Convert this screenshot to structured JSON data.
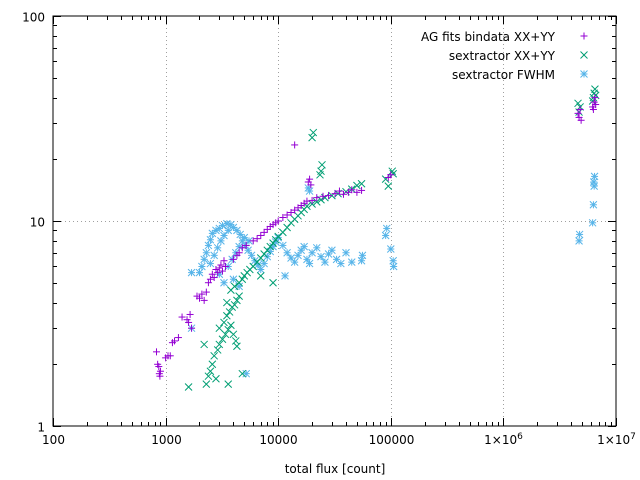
{
  "chart_data": {
    "type": "scatter",
    "title": "",
    "xlabel": "total flux [count]",
    "ylabel": "",
    "xscale": "log",
    "yscale": "log",
    "xlim": [
      100,
      10000000
    ],
    "ylim": [
      1,
      100
    ],
    "grid": true,
    "legend_position": "top-right",
    "x_ticks": [
      {
        "value": 100,
        "label": "100"
      },
      {
        "value": 1000,
        "label": "1000"
      },
      {
        "value": 10000,
        "label": "10000"
      },
      {
        "value": 100000,
        "label": "100000"
      },
      {
        "value": 1000000,
        "label": "1x10",
        "sup": "6"
      },
      {
        "value": 10000000,
        "label": "1x10",
        "sup": "7"
      }
    ],
    "y_ticks": [
      {
        "value": 1,
        "label": "1"
      },
      {
        "value": 10,
        "label": "10"
      },
      {
        "value": 100,
        "label": "100"
      }
    ],
    "series": [
      {
        "name": "AG fits bindata XX+YY",
        "marker": "plus",
        "color": "#9400d3",
        "points": [
          [
            830,
            2.3
          ],
          [
            850,
            2.0
          ],
          [
            870,
            1.95
          ],
          [
            880,
            1.8
          ],
          [
            890,
            1.75
          ],
          [
            900,
            1.85
          ],
          [
            1000,
            2.15
          ],
          [
            1050,
            2.2
          ],
          [
            1100,
            2.2
          ],
          [
            1150,
            2.55
          ],
          [
            1200,
            2.6
          ],
          [
            1300,
            2.7
          ],
          [
            1400,
            3.4
          ],
          [
            1550,
            3.3
          ],
          [
            1600,
            3.2
          ],
          [
            1650,
            3.5
          ],
          [
            1700,
            3.0
          ],
          [
            1900,
            4.3
          ],
          [
            2000,
            4.2
          ],
          [
            2100,
            4.4
          ],
          [
            2200,
            4.1
          ],
          [
            2300,
            4.5
          ],
          [
            2400,
            5.0
          ],
          [
            2500,
            5.2
          ],
          [
            2600,
            5.5
          ],
          [
            2700,
            5.3
          ],
          [
            2800,
            5.8
          ],
          [
            2900,
            5.6
          ],
          [
            3000,
            5.9
          ],
          [
            3100,
            6.1
          ],
          [
            3200,
            5.7
          ],
          [
            3300,
            6.4
          ],
          [
            3400,
            6.0
          ],
          [
            4000,
            6.5
          ],
          [
            4300,
            6.8
          ],
          [
            4500,
            7.0
          ],
          [
            4800,
            7.4
          ],
          [
            5200,
            7.6
          ],
          [
            6000,
            8.0
          ],
          [
            6500,
            8.2
          ],
          [
            7000,
            8.5
          ],
          [
            7500,
            8.8
          ],
          [
            8000,
            9.1
          ],
          [
            8500,
            9.4
          ],
          [
            9000,
            9.6
          ],
          [
            9500,
            9.8
          ],
          [
            10000,
            10.0
          ],
          [
            11000,
            10.4
          ],
          [
            12000,
            10.7
          ],
          [
            13000,
            11.0
          ],
          [
            14000,
            11.3
          ],
          [
            15000,
            11.6
          ],
          [
            16000,
            11.9
          ],
          [
            17000,
            12.2
          ],
          [
            18000,
            12.5
          ],
          [
            20000,
            12.6
          ],
          [
            22000,
            13.0
          ],
          [
            25000,
            13.2
          ],
          [
            28000,
            13.3
          ],
          [
            32000,
            13.6
          ],
          [
            35000,
            14.0
          ],
          [
            38000,
            13.5
          ],
          [
            42000,
            13.8
          ],
          [
            45000,
            14.2
          ],
          [
            50000,
            13.8
          ],
          [
            55000,
            14.1
          ],
          [
            14000,
            23.5
          ],
          [
            19000,
            16.0
          ],
          [
            19500,
            15.0
          ],
          [
            18500,
            15.5
          ],
          [
            95000,
            16.3
          ],
          [
            100000,
            16.8
          ],
          [
            4700000,
            32.0
          ],
          [
            4800000,
            35.0
          ],
          [
            4600000,
            33.5
          ],
          [
            4900000,
            31.0
          ],
          [
            6300000,
            35.0
          ],
          [
            6400000,
            38.0
          ],
          [
            6500000,
            40.0
          ],
          [
            6600000,
            37.0
          ],
          [
            6200000,
            36.0
          ]
        ]
      },
      {
        "name": "sextractor XX+YY",
        "marker": "cross",
        "color": "#009e73",
        "points": [
          [
            1600,
            1.55
          ],
          [
            2300,
            1.6
          ],
          [
            2400,
            1.75
          ],
          [
            2500,
            1.85
          ],
          [
            2600,
            2.0
          ],
          [
            2700,
            2.2
          ],
          [
            2900,
            2.35
          ],
          [
            3000,
            2.5
          ],
          [
            3200,
            2.65
          ],
          [
            2200,
            2.5
          ],
          [
            3400,
            2.8
          ],
          [
            3600,
            2.95
          ],
          [
            3800,
            3.1
          ],
          [
            4000,
            2.8
          ],
          [
            4200,
            2.6
          ],
          [
            4300,
            2.45
          ],
          [
            3000,
            3.0
          ],
          [
            3300,
            3.2
          ],
          [
            3500,
            3.45
          ],
          [
            3700,
            3.6
          ],
          [
            3900,
            3.8
          ],
          [
            4100,
            3.9
          ],
          [
            4300,
            4.1
          ],
          [
            4500,
            4.3
          ],
          [
            3500,
            4.0
          ],
          [
            3800,
            4.6
          ],
          [
            4100,
            4.8
          ],
          [
            4500,
            5.0
          ],
          [
            4800,
            5.2
          ],
          [
            5000,
            5.4
          ],
          [
            5300,
            5.6
          ],
          [
            5600,
            5.8
          ],
          [
            6000,
            6.0
          ],
          [
            3600,
            1.6
          ],
          [
            4800,
            1.8
          ],
          [
            2800,
            1.7
          ],
          [
            6500,
            6.3
          ],
          [
            7000,
            6.6
          ],
          [
            7500,
            6.9
          ],
          [
            8000,
            7.2
          ],
          [
            8500,
            7.5
          ],
          [
            9000,
            7.8
          ],
          [
            9500,
            8.1
          ],
          [
            10000,
            8.4
          ],
          [
            11000,
            8.8
          ],
          [
            12000,
            9.3
          ],
          [
            13000,
            9.8
          ],
          [
            14000,
            10.2
          ],
          [
            15000,
            10.6
          ],
          [
            16000,
            11.0
          ],
          [
            17000,
            11.4
          ],
          [
            18000,
            11.8
          ],
          [
            20000,
            12.1
          ],
          [
            22000,
            12.4
          ],
          [
            24000,
            12.7
          ],
          [
            26000,
            13.0
          ],
          [
            30000,
            13.3
          ],
          [
            34000,
            13.6
          ],
          [
            40000,
            13.9
          ],
          [
            45000,
            14.3
          ],
          [
            50000,
            14.9
          ],
          [
            55000,
            15.2
          ],
          [
            7000,
            5.4
          ],
          [
            9000,
            5.0
          ],
          [
            20000,
            25.5
          ],
          [
            20500,
            27.0
          ],
          [
            24000,
            17.5
          ],
          [
            24500,
            18.8
          ],
          [
            23500,
            16.8
          ],
          [
            90000,
            16.0
          ],
          [
            105000,
            17.0
          ],
          [
            103000,
            17.5
          ],
          [
            95000,
            14.8
          ],
          [
            4700000,
            34.0
          ],
          [
            4800000,
            36.0
          ],
          [
            4600000,
            37.5
          ],
          [
            6300000,
            40.0
          ],
          [
            6400000,
            42.0
          ],
          [
            6500000,
            44.0
          ],
          [
            6200000,
            38.5
          ],
          [
            6600000,
            41.0
          ]
        ]
      },
      {
        "name": "sextractor FWHM",
        "marker": "star",
        "color": "#56b4e9",
        "points": [
          [
            1700,
            5.6
          ],
          [
            2000,
            5.6
          ],
          [
            2100,
            6.0
          ],
          [
            2200,
            6.5
          ],
          [
            2300,
            7.0
          ],
          [
            2400,
            7.6
          ],
          [
            2500,
            8.1
          ],
          [
            2600,
            8.7
          ],
          [
            2800,
            9.0
          ],
          [
            3000,
            9.2
          ],
          [
            3200,
            9.5
          ],
          [
            3500,
            9.7
          ],
          [
            2500,
            6.2
          ],
          [
            2700,
            6.8
          ],
          [
            2900,
            7.4
          ],
          [
            3100,
            8.0
          ],
          [
            3300,
            8.5
          ],
          [
            3600,
            9.0
          ],
          [
            3800,
            9.6
          ],
          [
            4000,
            9.3
          ],
          [
            4300,
            9.0
          ],
          [
            4600,
            8.6
          ],
          [
            5000,
            8.3
          ],
          [
            5500,
            8.0
          ],
          [
            3000,
            5.5
          ],
          [
            3300,
            5.0
          ],
          [
            3600,
            6.0
          ],
          [
            3900,
            6.5
          ],
          [
            4200,
            7.0
          ],
          [
            4500,
            7.5
          ],
          [
            4800,
            8.0
          ],
          [
            5100,
            7.6
          ],
          [
            5400,
            7.2
          ],
          [
            5800,
            6.8
          ],
          [
            6200,
            6.4
          ],
          [
            6600,
            6.1
          ],
          [
            7000,
            5.8
          ],
          [
            7500,
            6.2
          ],
          [
            8000,
            6.7
          ],
          [
            8500,
            7.1
          ],
          [
            9000,
            7.5
          ],
          [
            9500,
            7.9
          ],
          [
            10000,
            8.3
          ],
          [
            11000,
            7.6
          ],
          [
            12000,
            7.0
          ],
          [
            13000,
            6.6
          ],
          [
            14000,
            6.3
          ],
          [
            15000,
            6.8
          ],
          [
            16000,
            7.2
          ],
          [
            17000,
            7.5
          ],
          [
            18000,
            6.5
          ],
          [
            19000,
            6.2
          ],
          [
            20000,
            7.0
          ],
          [
            22000,
            7.4
          ],
          [
            24000,
            6.7
          ],
          [
            26000,
            6.3
          ],
          [
            28000,
            6.9
          ],
          [
            30000,
            7.2
          ],
          [
            33000,
            6.5
          ],
          [
            36000,
            6.2
          ],
          [
            40000,
            7.0
          ],
          [
            45000,
            6.3
          ],
          [
            55000,
            6.4
          ],
          [
            56000,
            6.8
          ],
          [
            4500,
            4.8
          ],
          [
            4000,
            5.2
          ],
          [
            5200,
            1.8
          ],
          [
            1700,
            3.0
          ],
          [
            11500,
            5.4
          ],
          [
            18500,
            14.5
          ],
          [
            19000,
            14.0
          ],
          [
            90000,
            8.5
          ],
          [
            92000,
            9.2
          ],
          [
            100000,
            7.3
          ],
          [
            105000,
            6.4
          ],
          [
            106000,
            6.0
          ],
          [
            4700000,
            8.0
          ],
          [
            4750000,
            8.6
          ],
          [
            6200000,
            9.8
          ],
          [
            6300000,
            12.0
          ],
          [
            6400000,
            14.8
          ],
          [
            6350000,
            15.5
          ],
          [
            6450000,
            16.5
          ]
        ]
      }
    ]
  }
}
